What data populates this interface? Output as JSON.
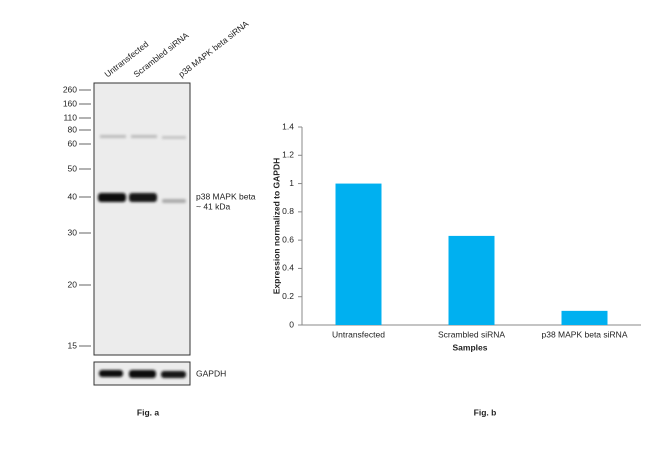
{
  "blot": {
    "lanes": [
      "Untransfected",
      "Scrambled siRNA",
      "p38 MAPK beta siRNA"
    ],
    "markers": [
      "260",
      "160",
      "110",
      "80",
      "60",
      "50",
      "40",
      "30",
      "20",
      "15"
    ],
    "band_label": "p38 MAPK beta",
    "band_size": "~ 41 kDa",
    "loading_control": "GAPDH",
    "caption": "Fig. a"
  },
  "chart_data": {
    "type": "bar",
    "caption": "Fig. b",
    "x_label": "Samples",
    "y_label": "Expression normalized to GAPDH",
    "categories": [
      "Untransfected",
      "Scrambled siRNA",
      "p38 MAPK beta siRNA"
    ],
    "values": [
      1,
      0.63,
      0.1
    ],
    "color": "#00b0f0",
    "ylim": [
      0,
      1.4
    ],
    "yticks": [
      0,
      0.2,
      0.4,
      0.6,
      0.8,
      1,
      1.2,
      1.4
    ],
    "grid": false
  }
}
